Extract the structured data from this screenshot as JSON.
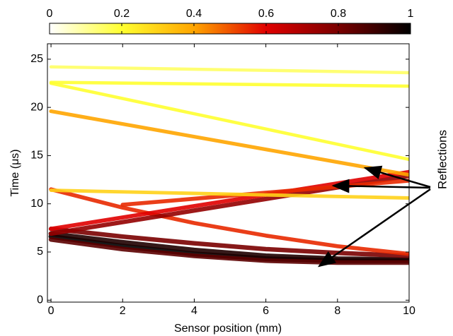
{
  "chart_data": {
    "type": "heatmap",
    "xlabel": "Sensor position (mm)",
    "ylabel": "Time (μs)",
    "annotation": "Reflections",
    "xlim": [
      -0.1,
      10
    ],
    "xticks": [
      0,
      2,
      4,
      6,
      8,
      10
    ],
    "ylim": [
      -0.2,
      26.6
    ],
    "yticks": [
      0,
      5,
      10,
      15,
      20,
      25
    ],
    "clim": [
      0,
      1
    ],
    "cticks": [
      0,
      0.2,
      0.4,
      0.6,
      0.8,
      1
    ],
    "colormap": [
      "#ffffff",
      "#ffff30",
      "#ffa500",
      "#e00000",
      "#7a0000",
      "#000000"
    ],
    "traces": [
      {
        "x": [
          0,
          2,
          4,
          6,
          8,
          10
        ],
        "y": [
          6.6,
          5.6,
          4.8,
          4.3,
          4.1,
          4.1
        ],
        "intensity": 1
      },
      {
        "x": [
          0,
          2,
          4,
          6,
          8,
          10
        ],
        "y": [
          6.9,
          6.0,
          5.2,
          4.6,
          4.3,
          4.2
        ],
        "intensity": 0.95
      },
      {
        "x": [
          0,
          2,
          4,
          6,
          8,
          10
        ],
        "y": [
          6.3,
          5.3,
          4.6,
          4.1,
          3.9,
          3.9
        ],
        "intensity": 0.85
      },
      {
        "x": [
          0,
          2,
          4,
          6,
          8,
          10
        ],
        "y": [
          7.4,
          6.6,
          5.9,
          5.3,
          4.9,
          4.6
        ],
        "intensity": 0.8
      },
      {
        "x": [
          0,
          2,
          4,
          6,
          8,
          10
        ],
        "y": [
          11.5,
          9.6,
          8.0,
          6.7,
          5.6,
          4.8
        ],
        "intensity": 0.55
      },
      {
        "x": [
          0,
          10
        ],
        "y": [
          6.9,
          12.9
        ],
        "intensity": 0.75
      },
      {
        "x": [
          0,
          10
        ],
        "y": [
          7.4,
          13.3
        ],
        "intensity": 0.6
      },
      {
        "x": [
          2,
          10
        ],
        "y": [
          9.9,
          12.4
        ],
        "intensity": 0.55
      },
      {
        "x": [
          0,
          10
        ],
        "y": [
          11.4,
          10.6
        ],
        "intensity": 0.3
      },
      {
        "x": [
          0,
          10
        ],
        "y": [
          19.6,
          13.0
        ],
        "intensity": 0.4
      },
      {
        "x": [
          0,
          10
        ],
        "y": [
          22.5,
          14.6
        ],
        "intensity": 0.2
      },
      {
        "x": [
          0,
          10
        ],
        "y": [
          24.2,
          23.6
        ],
        "intensity": 0.15
      },
      {
        "x": [
          0,
          10
        ],
        "y": [
          22.6,
          22.2
        ],
        "intensity": 0.2
      }
    ]
  }
}
